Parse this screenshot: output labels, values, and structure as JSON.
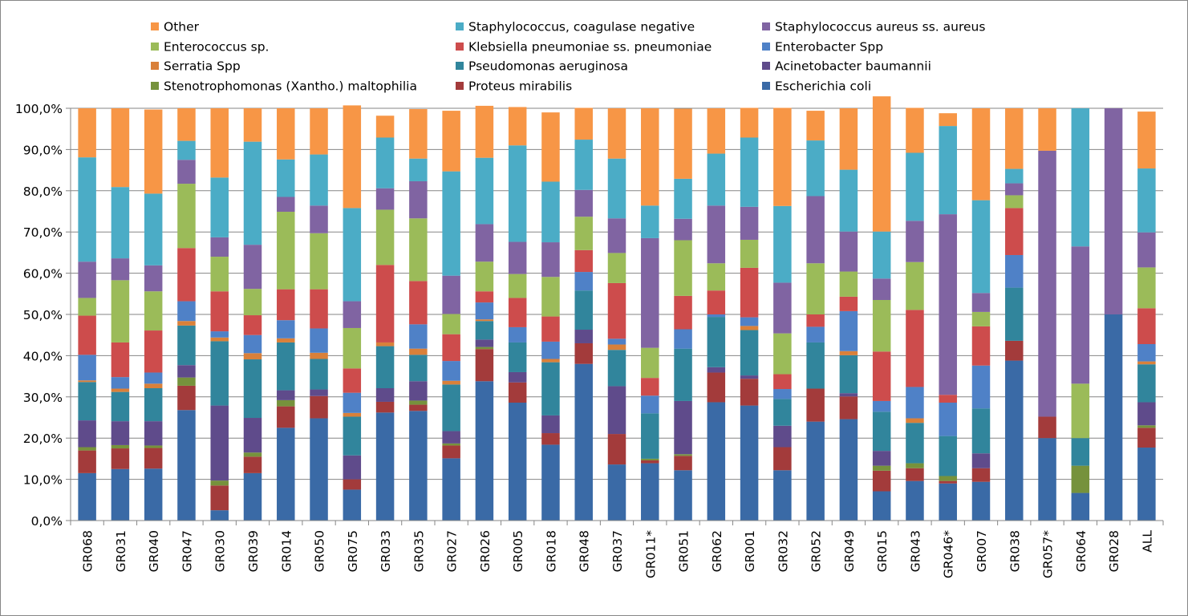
{
  "chart_data": {
    "type": "bar",
    "stacked": true,
    "percent": true,
    "title": "",
    "xlabel": "",
    "ylabel": "",
    "ylim": [
      0,
      100
    ],
    "y_ticks": [
      "0,0%",
      "10,0%",
      "20,0%",
      "30,0%",
      "40,0%",
      "50,0%",
      "60,0%",
      "70,0%",
      "80,0%",
      "90,0%",
      "100,0%"
    ],
    "grid": "horizontal",
    "legend_position": "top",
    "categories": [
      "GR068",
      "GR031",
      "GR040",
      "GR047",
      "GR030",
      "GR039",
      "GR014",
      "GR050",
      "GR075",
      "GR033",
      "GR035",
      "GR027",
      "GR026",
      "GR005",
      "GR018",
      "GR048",
      "GR037",
      "GR011*",
      "GR051",
      "GR062",
      "GR001",
      "GR032",
      "GR052",
      "GR049",
      "GR015",
      "GR043",
      "GR046*",
      "GR007",
      "GR038",
      "GR057*",
      "GR064",
      "GR028",
      "ALL"
    ],
    "legend": [
      {
        "name": "Other",
        "series": 11
      },
      {
        "name": "Staphylococcus, coagulase negative",
        "series": 10
      },
      {
        "name": "Staphylococcus aureus ss. aureus",
        "series": 9
      },
      {
        "name": "Enterococcus sp.",
        "series": 8
      },
      {
        "name": "Klebsiella pneumoniae ss. pneumoniae",
        "series": 7
      },
      {
        "name": "Enterobacter Spp",
        "series": 6
      },
      {
        "name": "Serratia Spp",
        "series": 5
      },
      {
        "name": "Pseudomonas aeruginosa",
        "series": 4
      },
      {
        "name": "Acinetobacter baumannii",
        "series": 3
      },
      {
        "name": "Stenotrophomonas (Xantho.) maltophilia",
        "series": 2
      },
      {
        "name": "Proteus mirabilis",
        "series": 1
      },
      {
        "name": "Escherichia coli",
        "series": 0
      }
    ],
    "series": [
      {
        "name": "Escherichia coli",
        "color": "#3A6AA6",
        "values": [
          11.5,
          12.5,
          12.6,
          26.8,
          2.5,
          11.5,
          22.5,
          24.8,
          7.5,
          26.2,
          26.6,
          15.1,
          33.8,
          28.6,
          18.4,
          38.0,
          13.6,
          13.9,
          12.2,
          28.7,
          27.9,
          12.2,
          24.0,
          24.6,
          7.1,
          9.6,
          9.0,
          9.4,
          38.8,
          20.0,
          6.7,
          50.0,
          17.7
        ]
      },
      {
        "name": "Proteus mirabilis",
        "color": "#A33B3B",
        "values": [
          5.5,
          5.0,
          5.0,
          5.9,
          6.0,
          4.0,
          5.2,
          5.4,
          2.5,
          2.6,
          1.5,
          3.1,
          7.8,
          4.9,
          2.8,
          5.0,
          7.4,
          0.7,
          3.5,
          7.2,
          6.5,
          5.6,
          8.0,
          5.5,
          5.0,
          3.1,
          0.6,
          3.3,
          4.8,
          5.2,
          0,
          0,
          4.8
        ]
      },
      {
        "name": "Stenotrophomonas (Xantho.) maltophilia",
        "color": "#76923C",
        "values": [
          0.8,
          0.8,
          0.6,
          2.0,
          1.2,
          1.0,
          1.5,
          0,
          0,
          0,
          1.0,
          0.5,
          0.5,
          0,
          0,
          0,
          0,
          0.4,
          0.4,
          0,
          0,
          0,
          0,
          0,
          1.2,
          1.2,
          1.2,
          0,
          0,
          0,
          6.6,
          0,
          0.6
        ]
      },
      {
        "name": "Acinetobacter baumannii",
        "color": "#5F4B8B",
        "values": [
          6.5,
          5.8,
          5.9,
          3.0,
          18.2,
          8.4,
          2.4,
          1.6,
          5.8,
          3.3,
          4.7,
          3.0,
          1.8,
          2.5,
          4.3,
          3.3,
          11.6,
          0,
          12.9,
          1.3,
          0.8,
          5.2,
          0,
          0.8,
          3.6,
          0,
          0,
          3.6,
          0,
          0,
          0,
          0,
          5.6
        ]
      },
      {
        "name": "Pseudomonas aeruginosa",
        "color": "#31859C",
        "values": [
          9.3,
          7.1,
          8.0,
          9.6,
          15.6,
          14.2,
          11.6,
          7.4,
          9.4,
          10.2,
          6.4,
          11.3,
          4.5,
          7.2,
          12.9,
          9.5,
          8.8,
          11.0,
          12.7,
          12.2,
          11.0,
          6.5,
          11.2,
          9.2,
          9.5,
          9.8,
          9.7,
          10.9,
          12.9,
          0,
          6.7,
          0,
          9.2
        ]
      },
      {
        "name": "Serratia Spp",
        "color": "#D9803A",
        "values": [
          0.4,
          0.8,
          1.1,
          1.1,
          0.9,
          1.5,
          1.0,
          1.5,
          0.9,
          0.9,
          1.5,
          0.9,
          0.4,
          0,
          0.8,
          0,
          1.3,
          0,
          0,
          0,
          1.0,
          0,
          0,
          1.0,
          0,
          1.1,
          0,
          0,
          0,
          0,
          0,
          0,
          0.7
        ]
      },
      {
        "name": "Enterobacter Spp",
        "color": "#4F81C7",
        "values": [
          6.2,
          2.8,
          2.7,
          4.8,
          1.5,
          4.4,
          4.4,
          5.9,
          4.9,
          0,
          5.9,
          4.8,
          4.1,
          3.7,
          4.2,
          4.5,
          1.4,
          4.3,
          4.7,
          0.6,
          2.1,
          2.4,
          3.8,
          9.7,
          2.6,
          7.6,
          8.1,
          10.4,
          7.9,
          0,
          0,
          0,
          4.2
        ]
      },
      {
        "name": "Klebsiella pneumoniae ss. pneumoniae",
        "color": "#CD4C4C",
        "values": [
          9.5,
          8.4,
          10.2,
          12.9,
          9.7,
          4.8,
          7.5,
          9.5,
          5.9,
          18.8,
          10.5,
          6.5,
          2.7,
          7.1,
          6.1,
          5.3,
          13.5,
          4.3,
          8.1,
          5.8,
          12.0,
          3.6,
          3.0,
          3.5,
          12.0,
          18.7,
          1.9,
          9.5,
          11.4,
          0,
          0,
          0,
          8.7
        ]
      },
      {
        "name": "Enterococcus sp.",
        "color": "#9BBB59",
        "values": [
          4.3,
          15.1,
          9.5,
          15.6,
          8.4,
          6.4,
          18.8,
          13.6,
          9.8,
          13.4,
          15.2,
          4.9,
          7.2,
          5.8,
          9.6,
          8.1,
          7.3,
          7.3,
          13.5,
          6.6,
          6.8,
          9.9,
          12.4,
          6.1,
          12.5,
          11.6,
          0,
          3.5,
          3.1,
          0,
          13.2,
          0,
          9.9
        ]
      },
      {
        "name": "Staphylococcus aureus ss. aureus",
        "color": "#8064A2",
        "values": [
          8.8,
          5.3,
          6.3,
          5.8,
          4.7,
          10.7,
          3.6,
          6.7,
          6.5,
          5.2,
          9.0,
          9.3,
          9.1,
          7.8,
          8.4,
          6.5,
          8.4,
          26.6,
          5.2,
          14.0,
          8.0,
          12.3,
          16.3,
          9.7,
          5.2,
          10.0,
          43.8,
          4.6,
          2.9,
          64.5,
          33.3,
          50.0,
          8.5
        ]
      },
      {
        "name": "Staphylococcus, coagulase negative",
        "color": "#4BACC6",
        "values": [
          25.3,
          17.3,
          17.4,
          4.6,
          14.5,
          25.0,
          9.1,
          12.4,
          22.6,
          12.3,
          5.5,
          25.3,
          16.1,
          23.4,
          14.7,
          12.2,
          14.5,
          7.9,
          9.7,
          12.6,
          16.8,
          18.6,
          13.5,
          15.0,
          11.4,
          16.5,
          21.4,
          22.5,
          3.5,
          0,
          33.5,
          0,
          15.5
        ]
      },
      {
        "name": "Other",
        "color": "#F79646",
        "values": [
          11.9,
          19.1,
          20.4,
          7.9,
          16.8,
          8.1,
          12.4,
          11.2,
          24.9,
          5.3,
          12.0,
          14.7,
          12.6,
          9.3,
          16.8,
          7.7,
          12.2,
          23.6,
          17.0,
          11.0,
          7.2,
          23.8,
          7.2,
          14.9,
          32.8,
          10.9,
          3.1,
          22.3,
          14.7,
          10.3,
          0,
          0,
          13.8
        ]
      }
    ]
  }
}
